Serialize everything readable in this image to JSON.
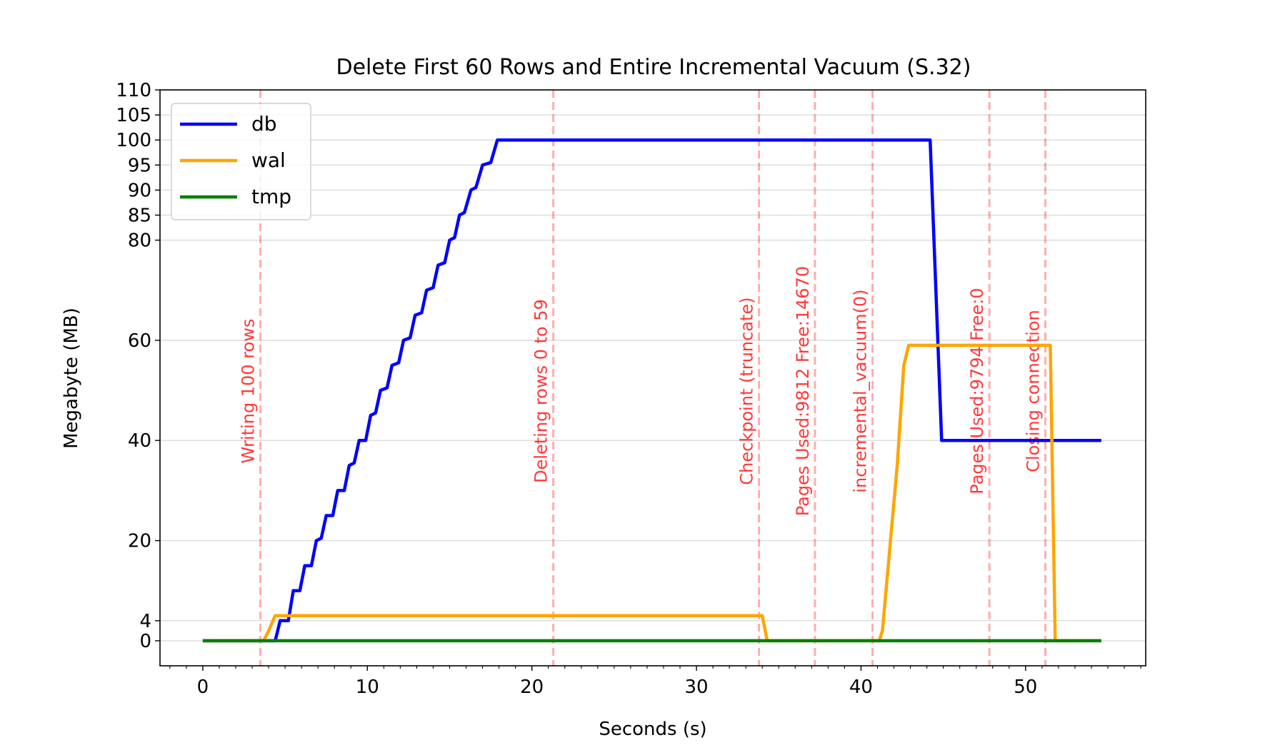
{
  "chart_data": {
    "type": "line",
    "title": "Delete First 60 Rows and Entire Incremental Vacuum (S.32)",
    "xlabel": "Seconds (s)",
    "ylabel": "Megabyte (MB)",
    "xlim": [
      -2.6,
      57.3
    ],
    "ylim": [
      -5,
      110
    ],
    "xticks": [
      0,
      10,
      20,
      30,
      40,
      50
    ],
    "xticks_minor_step": 1,
    "yticks": [
      0,
      4,
      20,
      40,
      60,
      80,
      85,
      90,
      95,
      100,
      105,
      110
    ],
    "grid": "y-major",
    "legend_position": "upper-left",
    "series": [
      {
        "name": "db",
        "color": "#0000ff",
        "points": [
          [
            0,
            0
          ],
          [
            4.4,
            0
          ],
          [
            4.7,
            4
          ],
          [
            5.2,
            4
          ],
          [
            5.5,
            10
          ],
          [
            5.9,
            10
          ],
          [
            6.2,
            15
          ],
          [
            6.6,
            15
          ],
          [
            6.9,
            20
          ],
          [
            7.2,
            20.5
          ],
          [
            7.5,
            25
          ],
          [
            7.9,
            25
          ],
          [
            8.2,
            30
          ],
          [
            8.6,
            30
          ],
          [
            8.9,
            35
          ],
          [
            9.2,
            35.5
          ],
          [
            9.5,
            40
          ],
          [
            9.9,
            40
          ],
          [
            10.2,
            45
          ],
          [
            10.5,
            45.5
          ],
          [
            10.8,
            50
          ],
          [
            11.2,
            50.5
          ],
          [
            11.5,
            55
          ],
          [
            11.9,
            55.5
          ],
          [
            12.2,
            60
          ],
          [
            12.6,
            60.5
          ],
          [
            12.9,
            65
          ],
          [
            13.3,
            65.5
          ],
          [
            13.6,
            70
          ],
          [
            14.0,
            70.5
          ],
          [
            14.3,
            75
          ],
          [
            14.7,
            75.5
          ],
          [
            15.0,
            80
          ],
          [
            15.3,
            80.5
          ],
          [
            15.6,
            85
          ],
          [
            15.9,
            85.5
          ],
          [
            16.3,
            90
          ],
          [
            16.6,
            90.5
          ],
          [
            17.0,
            95
          ],
          [
            17.5,
            95.5
          ],
          [
            17.9,
            100
          ],
          [
            44.2,
            100
          ],
          [
            44.9,
            40
          ],
          [
            54.6,
            40
          ]
        ]
      },
      {
        "name": "wal",
        "color": "#ffa500",
        "points": [
          [
            0,
            0
          ],
          [
            3.7,
            0
          ],
          [
            4.0,
            2
          ],
          [
            4.4,
            5
          ],
          [
            34.0,
            5
          ],
          [
            34.3,
            0
          ],
          [
            41.1,
            0
          ],
          [
            41.3,
            2
          ],
          [
            42.2,
            35
          ],
          [
            42.6,
            55
          ],
          [
            42.9,
            59
          ],
          [
            51.5,
            59
          ],
          [
            51.8,
            0
          ],
          [
            54.6,
            0
          ]
        ]
      },
      {
        "name": "tmp",
        "color": "#008000",
        "points": [
          [
            0,
            0
          ],
          [
            54.6,
            0
          ]
        ]
      }
    ],
    "annotations": [
      {
        "x": 3.5,
        "label": "Writing 100 rows"
      },
      {
        "x": 21.3,
        "label": "Deleting rows 0 to 59"
      },
      {
        "x": 33.8,
        "label": "Checkpoint (truncate)"
      },
      {
        "x": 37.2,
        "label": "Pages Used:9812 Free:14670"
      },
      {
        "x": 40.7,
        "label": "incremental_vacuum(0)"
      },
      {
        "x": 47.8,
        "label": "Pages Used:9794 Free:0"
      },
      {
        "x": 51.2,
        "label": "Closing connection"
      }
    ],
    "annotation_color": "#ff0000"
  }
}
